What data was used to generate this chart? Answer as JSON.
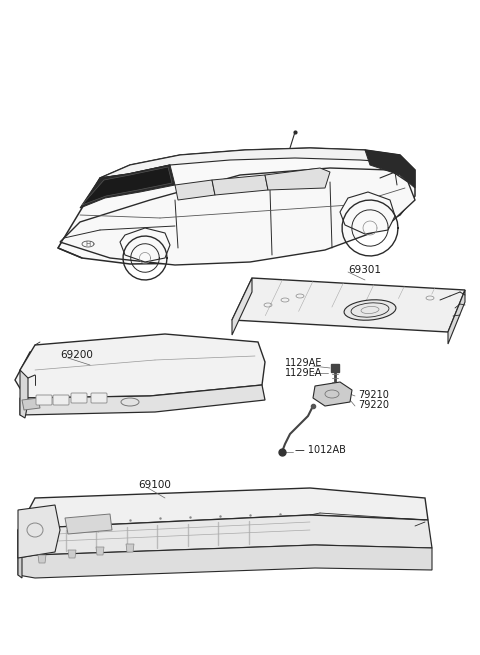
{
  "background_color": "#ffffff",
  "line_color": "#2a2a2a",
  "text_color": "#1a1a1a",
  "label_fontsize": 7.0,
  "figsize": [
    4.8,
    6.55
  ],
  "dpi": 100,
  "parts": {
    "69301": {
      "label": "69301"
    },
    "69200": {
      "label": "69200"
    },
    "69100": {
      "label": "69100"
    },
    "1129AE": {
      "label": "1129AE"
    },
    "1129EA": {
      "label": "1129EA"
    },
    "79210": {
      "label": "79210"
    },
    "79220": {
      "label": "79220"
    },
    "1012AB": {
      "label": "1012AB"
    }
  }
}
